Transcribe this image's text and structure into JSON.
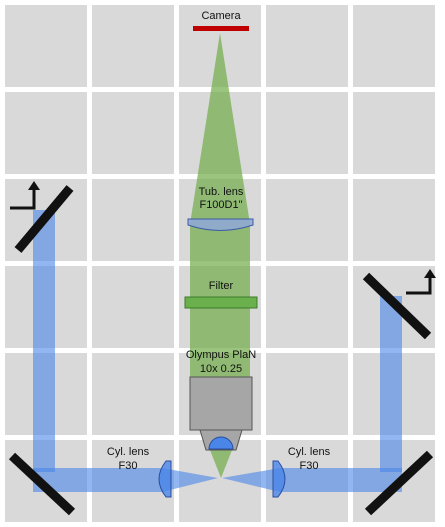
{
  "labels": {
    "camera": "Camera",
    "tube_lens_line1": "Tub. lens",
    "tube_lens_line2": "F100D1\"",
    "filter": "Filter",
    "objective_line1": "Olympus PlaN",
    "objective_line2": "10x 0.25",
    "cyl_lens_left_line1": "Cyl. lens",
    "cyl_lens_left_line2": "F30",
    "cyl_lens_right_line1": "Cyl. lens",
    "cyl_lens_right_line2": "F30"
  },
  "colors": {
    "background_tile": "#d9d9d9",
    "background": "#ffffff",
    "camera_sensor": "#c00000",
    "emission_beam": "#70ad47",
    "excitation_beam": "#4a86e8",
    "tube_lens": "#8fa8d8",
    "filter": "#6ab04c",
    "objective_body": "#a6a6a6",
    "objective_front": "#4a86e8",
    "cyl_lens": "#4a86e8",
    "mirror": "#111111"
  },
  "icons": {
    "periscope_left": "periscope-arrow-icon",
    "periscope_right": "periscope-arrow-icon"
  }
}
